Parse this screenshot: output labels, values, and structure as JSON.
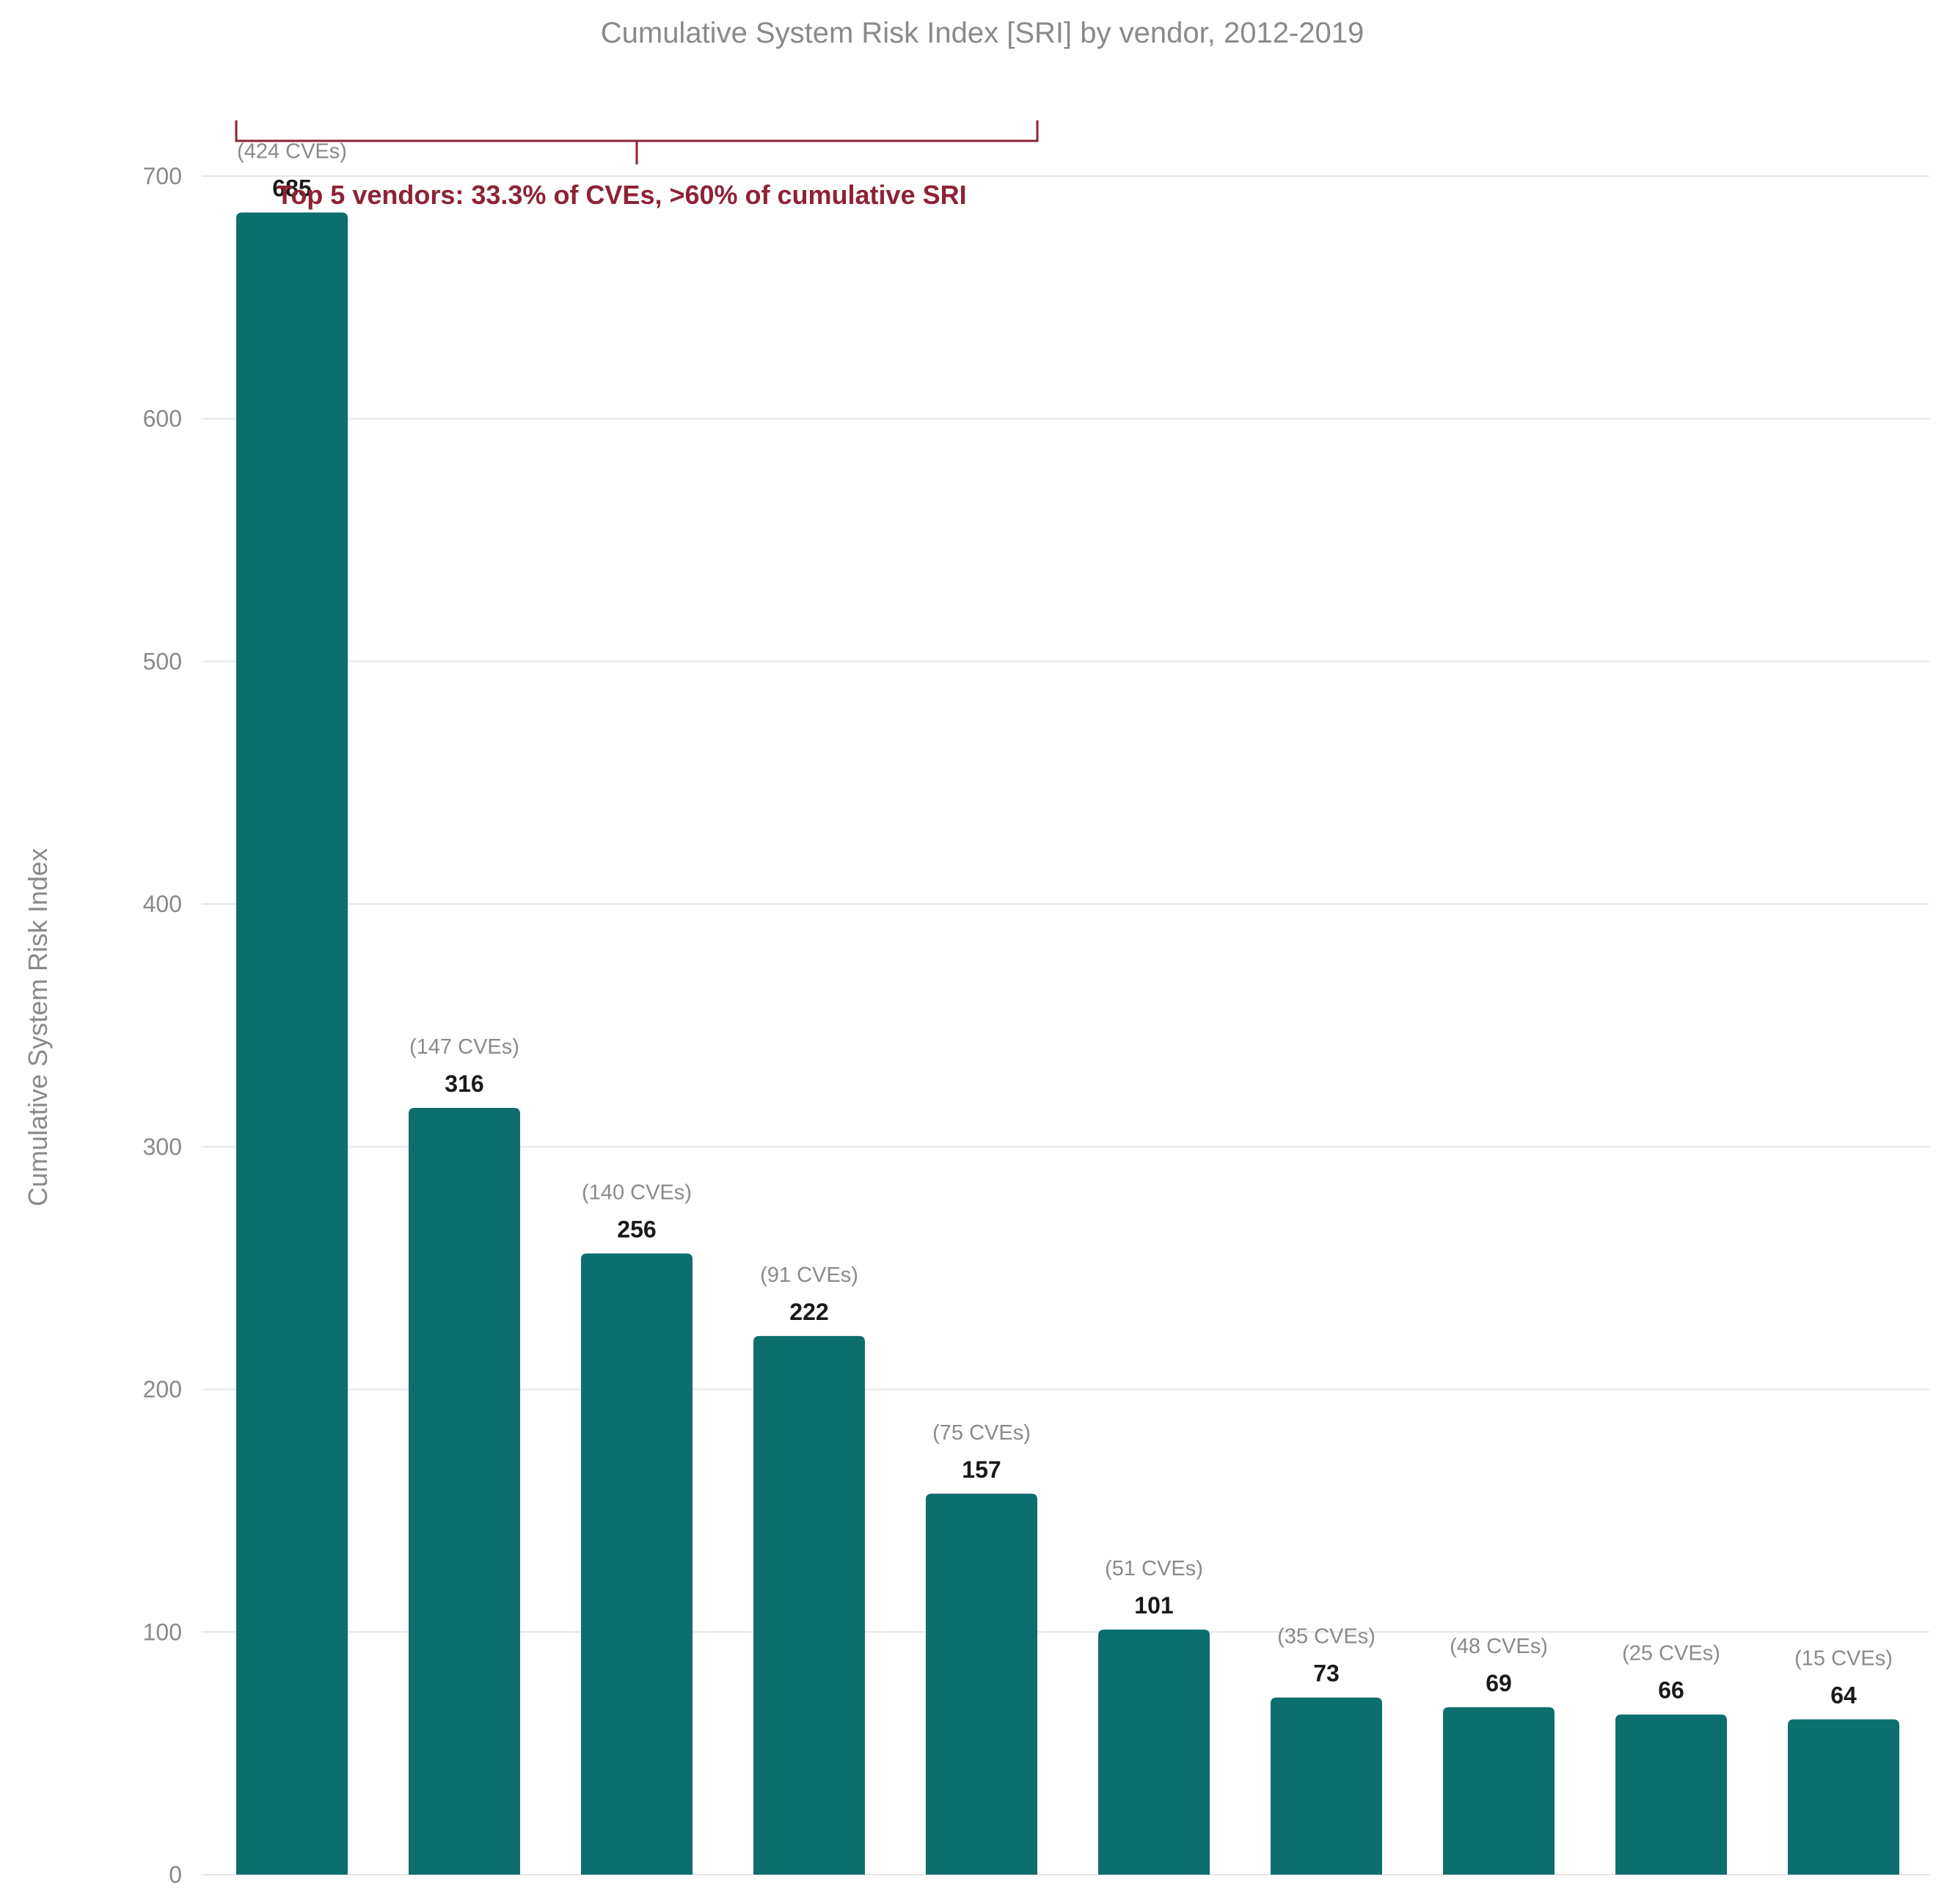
{
  "chart_data": {
    "type": "bar",
    "title": "Cumulative System Risk Index [SRI] by vendor, 2012-2019",
    "xlabel": "",
    "ylabel": "Cumulative System Risk Index",
    "ylim": [
      0,
      700
    ],
    "yticks": [
      0,
      100,
      200,
      300,
      400,
      500,
      600,
      700
    ],
    "grid": true,
    "values": [
      685,
      316,
      256,
      222,
      157,
      101,
      73,
      69,
      66,
      64
    ],
    "cve_labels": [
      "(424 CVEs)",
      "(147 CVEs)",
      "(140 CVEs)",
      "(91 CVEs)",
      "(75 CVEs)",
      "(51 CVEs)",
      "(35 CVEs)",
      "(48 CVEs)",
      "(25 CVEs)",
      "(15 CVEs)"
    ],
    "annotation": {
      "text": "Top 5 vendors: 33.3% of CVEs, >60% of cumulative SRI",
      "spans_bars": [
        0,
        4
      ]
    },
    "colors": {
      "bar": "#0d6e6e",
      "annotation": "#8e2235"
    }
  }
}
